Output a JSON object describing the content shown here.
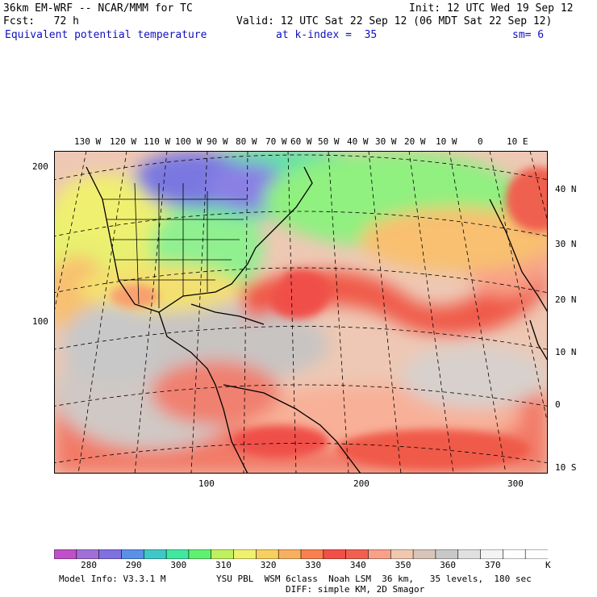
{
  "header": {
    "model_title": "36km EM-WRF -- NCAR/MMM for TC",
    "init": "Init: 12 UTC Wed 19 Sep 12",
    "forecast": "Fcst:   72 h",
    "valid": "Valid: 12 UTC Sat 22 Sep 12 (06 MDT Sat 22 Sep 12)",
    "field": "Equivalent potential temperature",
    "level": "at k-index =  35",
    "smoothing": "sm= 6"
  },
  "longitude_labels": [
    "130 W",
    "120 W",
    "110 W",
    "100 W",
    "90 W",
    "80 W",
    "70 W",
    "60 W",
    "50 W",
    "40 W",
    "30 W",
    "20 W",
    "10 W",
    "0",
    "10 E"
  ],
  "latitude_labels": [
    "40 N",
    "30 N",
    "20 N",
    "10 N",
    "0",
    "10 S"
  ],
  "grid_y_labels": [
    "200",
    "100"
  ],
  "grid_x_labels": [
    "100",
    "200",
    "300"
  ],
  "colorbar": {
    "labels": [
      "280",
      "290",
      "300",
      "310",
      "320",
      "330",
      "340",
      "350",
      "360",
      "370"
    ],
    "units": "K",
    "colors": [
      "#c050c8",
      "#a070d8",
      "#8070e0",
      "#5a90e8",
      "#40c8c8",
      "#40e8a0",
      "#60f070",
      "#c0f060",
      "#f0f070",
      "#f8d060",
      "#f8b060",
      "#f88050",
      "#f05048",
      "#f06050",
      "#f8a088",
      "#f0c8b0",
      "#d8c4b8",
      "#c8c8c8",
      "#e0e0e0",
      "#f4f4f4",
      "#ffffff",
      "#ffffff"
    ]
  },
  "footer": {
    "model_info": "Model Info: V3.3.1 M",
    "physics": "YSU PBL  WSM 6class  Noah LSM  36 km,   35 levels,  180 sec",
    "diffusion": "DIFF: simple KM, 2D Smagor"
  }
}
